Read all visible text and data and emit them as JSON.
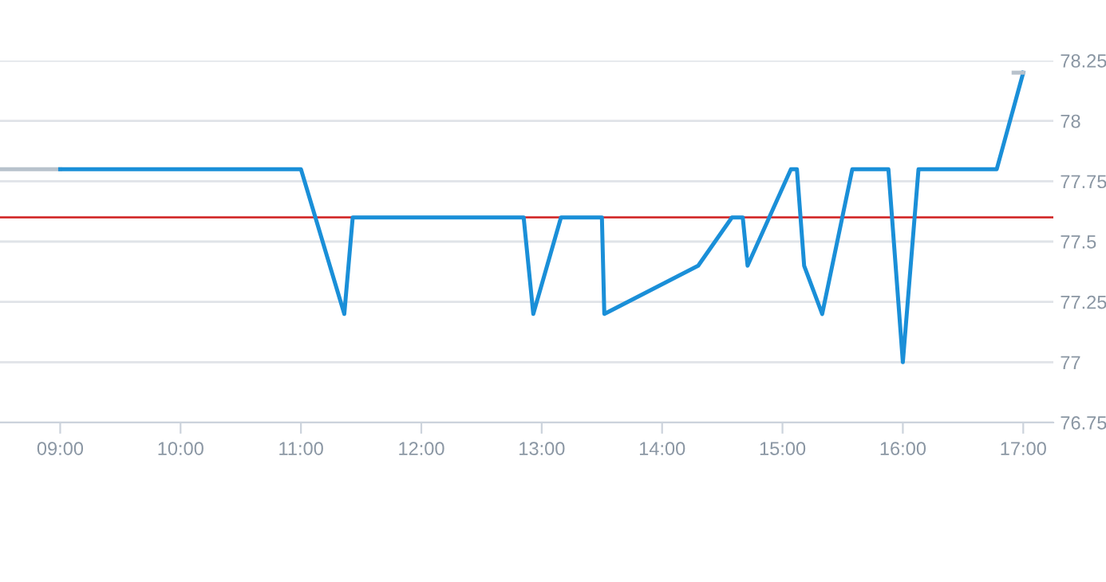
{
  "chart_data": {
    "type": "line",
    "series": [
      {
        "color": "#b8c2cc",
        "x": [
          8.5,
          9.0
        ],
        "values": [
          77.8,
          77.8
        ]
      },
      {
        "color": "#1a8fd8",
        "x": [
          9.0,
          11.0,
          11.36,
          11.43,
          12.85,
          12.93,
          13.16,
          13.5,
          13.52,
          14.3,
          14.58,
          14.67,
          14.71,
          15.07,
          15.12,
          15.18,
          15.33,
          15.58,
          15.88,
          16.0,
          16.13,
          16.78,
          17.0
        ],
        "values": [
          77.8,
          77.8,
          77.2,
          77.6,
          77.6,
          77.2,
          77.6,
          77.6,
          77.2,
          77.4,
          77.6,
          77.6,
          77.4,
          77.8,
          77.8,
          77.4,
          77.2,
          77.8,
          77.8,
          77.0,
          77.8,
          77.8,
          78.2
        ]
      },
      {
        "color": "#b8c2cc",
        "x": [
          16.92,
          17.0
        ],
        "values": [
          78.2,
          78.2
        ]
      }
    ],
    "ref_lines": [
      {
        "axis": "y",
        "value": 77.6,
        "color": "#d32f2f"
      }
    ],
    "xlim": [
      8.5,
      17.25
    ],
    "xticks": [
      {
        "value": 9,
        "label": "09:00"
      },
      {
        "value": 10,
        "label": "10:00"
      },
      {
        "value": 11,
        "label": "11:00"
      },
      {
        "value": 12,
        "label": "12:00"
      },
      {
        "value": 13,
        "label": "13:00"
      },
      {
        "value": 14,
        "label": "14:00"
      },
      {
        "value": 15,
        "label": "15:00"
      },
      {
        "value": 16,
        "label": "16:00"
      },
      {
        "value": 17,
        "label": "17:00"
      }
    ],
    "ylim": [
      76.75,
      78.25
    ],
    "yticks": [
      76.75,
      77,
      77.25,
      77.5,
      77.75,
      78,
      78.25
    ],
    "grid": "y",
    "marker": "none",
    "line_style": "solid"
  }
}
